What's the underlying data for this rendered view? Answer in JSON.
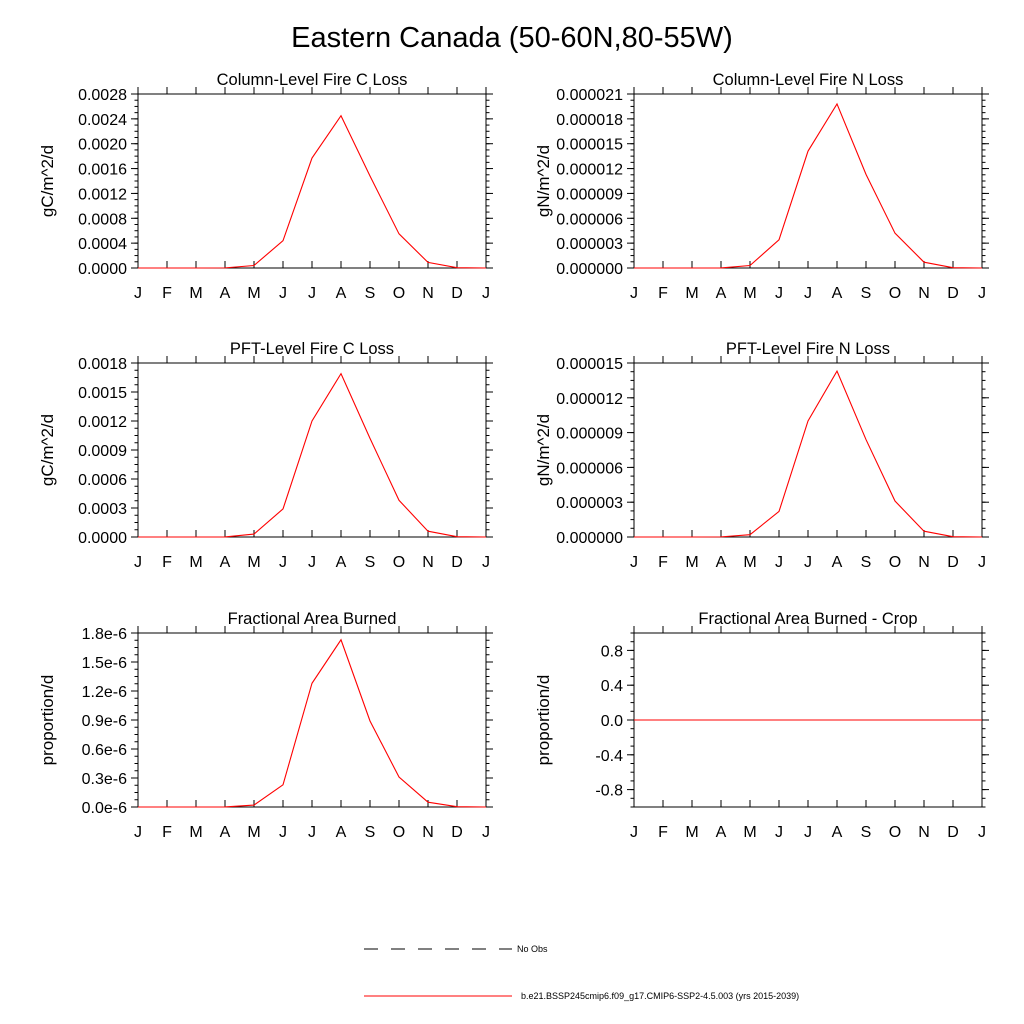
{
  "page": {
    "title": "Eastern Canada (50-60N,80-55W)"
  },
  "legend": {
    "items": [
      {
        "label": "No Obs",
        "color": "#000000",
        "dashed": true
      },
      {
        "label": "b.e21.BSSP245cmip6.f09_g17.CMIP6-SSP2-4.5.003 (yrs 2015-2039)",
        "color": "#ff0000",
        "dashed": false
      }
    ]
  },
  "chart_data": [
    {
      "type": "line",
      "title": "Column-Level Fire C Loss",
      "ylabel": "gC/m^2/d",
      "xlabel": "",
      "categories": [
        "J",
        "F",
        "M",
        "A",
        "M",
        "J",
        "J",
        "A",
        "S",
        "O",
        "N",
        "D",
        "J"
      ],
      "ylim": [
        0,
        0.0028
      ],
      "yticks": [
        0.0,
        0.0004,
        0.0008,
        0.0012,
        0.0016,
        0.002,
        0.0024,
        0.0028
      ],
      "ytick_labels": [
        "0.0000",
        "0.0004",
        "0.0008",
        "0.0012",
        "0.0016",
        "0.0020",
        "0.0024",
        "0.0028"
      ],
      "series": [
        {
          "name": "b.e21.BSSP245cmip6.f09_g17.CMIP6-SSP2-4.5.003 (yrs 2015-2039)",
          "color": "#ff0000",
          "values": [
            0,
            0,
            0,
            2e-06,
            4e-05,
            0.00044,
            0.00177,
            0.00245,
            0.00148,
            0.00055,
            9e-05,
            5e-06,
            0
          ]
        }
      ]
    },
    {
      "type": "line",
      "title": "Column-Level Fire N Loss",
      "ylabel": "gN/m^2/d",
      "xlabel": "",
      "categories": [
        "J",
        "F",
        "M",
        "A",
        "M",
        "J",
        "J",
        "A",
        "S",
        "O",
        "N",
        "D",
        "J"
      ],
      "ylim": [
        0,
        2.1e-05
      ],
      "yticks": [
        0.0,
        3e-06,
        6e-06,
        9e-06,
        1.2e-05,
        1.5e-05,
        1.8e-05,
        2.1e-05
      ],
      "ytick_labels": [
        "0.000000",
        "0.000003",
        "0.000006",
        "0.000009",
        "0.000012",
        "0.000015",
        "0.000018",
        "0.000021"
      ],
      "series": [
        {
          "name": "b.e21.BSSP245cmip6.f09_g17.CMIP6-SSP2-4.5.003 (yrs 2015-2039)",
          "color": "#ff0000",
          "values": [
            0,
            0,
            0,
            1e-08,
            3e-07,
            3.4e-06,
            1.41e-05,
            1.98e-05,
            1.13e-05,
            4.2e-06,
            7e-07,
            4e-08,
            0
          ]
        }
      ]
    },
    {
      "type": "line",
      "title": "PFT-Level Fire C Loss",
      "ylabel": "gC/m^2/d",
      "xlabel": "",
      "categories": [
        "J",
        "F",
        "M",
        "A",
        "M",
        "J",
        "J",
        "A",
        "S",
        "O",
        "N",
        "D",
        "J"
      ],
      "ylim": [
        0,
        0.0018
      ],
      "yticks": [
        0.0,
        0.0003,
        0.0006,
        0.0009,
        0.0012,
        0.0015,
        0.0018
      ],
      "ytick_labels": [
        "0.0000",
        "0.0003",
        "0.0006",
        "0.0009",
        "0.0012",
        "0.0015",
        "0.0018"
      ],
      "series": [
        {
          "name": "b.e21.BSSP245cmip6.f09_g17.CMIP6-SSP2-4.5.003 (yrs 2015-2039)",
          "color": "#ff0000",
          "values": [
            0,
            0,
            0,
            1e-06,
            3e-05,
            0.00029,
            0.0012,
            0.00169,
            0.00102,
            0.00038,
            6e-05,
            3e-06,
            0
          ]
        }
      ]
    },
    {
      "type": "line",
      "title": "PFT-Level Fire N Loss",
      "ylabel": "gN/m^2/d",
      "xlabel": "",
      "categories": [
        "J",
        "F",
        "M",
        "A",
        "M",
        "J",
        "J",
        "A",
        "S",
        "O",
        "N",
        "D",
        "J"
      ],
      "ylim": [
        0,
        1.5e-05
      ],
      "yticks": [
        0.0,
        3e-06,
        6e-06,
        9e-06,
        1.2e-05,
        1.5e-05
      ],
      "ytick_labels": [
        "0.000000",
        "0.000003",
        "0.000006",
        "0.000009",
        "0.000012",
        "0.000015"
      ],
      "series": [
        {
          "name": "b.e21.BSSP245cmip6.f09_g17.CMIP6-SSP2-4.5.003 (yrs 2015-2039)",
          "color": "#ff0000",
          "values": [
            0,
            0,
            0,
            1e-08,
            2e-07,
            2.2e-06,
            1e-05,
            1.43e-05,
            8.4e-06,
            3.1e-06,
            5e-07,
            3e-08,
            0
          ]
        }
      ]
    },
    {
      "type": "line",
      "title": "Fractional Area Burned",
      "ylabel": "proportion/d",
      "xlabel": "",
      "categories": [
        "J",
        "F",
        "M",
        "A",
        "M",
        "J",
        "J",
        "A",
        "S",
        "O",
        "N",
        "D",
        "J"
      ],
      "ylim": [
        0,
        1.8e-06
      ],
      "yticks": [
        0.0,
        3e-07,
        6e-07,
        9e-07,
        1.2e-06,
        1.5e-06,
        1.8e-06
      ],
      "ytick_labels": [
        "0.0e-6",
        "0.3e-6",
        "0.6e-6",
        "0.9e-6",
        "1.2e-6",
        "1.5e-6",
        "1.8e-6"
      ],
      "series": [
        {
          "name": "b.e21.BSSP245cmip6.f09_g17.CMIP6-SSP2-4.5.003 (yrs 2015-2039)",
          "color": "#ff0000",
          "values": [
            0,
            0,
            0,
            1e-09,
            2e-08,
            2.3e-07,
            1.28e-06,
            1.73e-06,
            8.9e-07,
            3.1e-07,
            5e-08,
            3e-09,
            0
          ]
        }
      ]
    },
    {
      "type": "line",
      "title": "Fractional Area Burned - Crop",
      "ylabel": "proportion/d",
      "xlabel": "",
      "categories": [
        "J",
        "F",
        "M",
        "A",
        "M",
        "J",
        "J",
        "A",
        "S",
        "O",
        "N",
        "D",
        "J"
      ],
      "ylim": [
        -1,
        1
      ],
      "yticks": [
        -0.8,
        -0.4,
        0.0,
        0.4,
        0.8
      ],
      "ytick_labels": [
        "-0.8",
        "-0.4",
        "0.0",
        "0.4",
        "0.8"
      ],
      "series": [
        {
          "name": "b.e21.BSSP245cmip6.f09_g17.CMIP6-SSP2-4.5.003 (yrs 2015-2039)",
          "color": "#ff0000",
          "values": [
            0,
            0,
            0,
            0,
            0,
            0,
            0,
            0,
            0,
            0,
            0,
            0,
            0
          ]
        }
      ]
    }
  ]
}
